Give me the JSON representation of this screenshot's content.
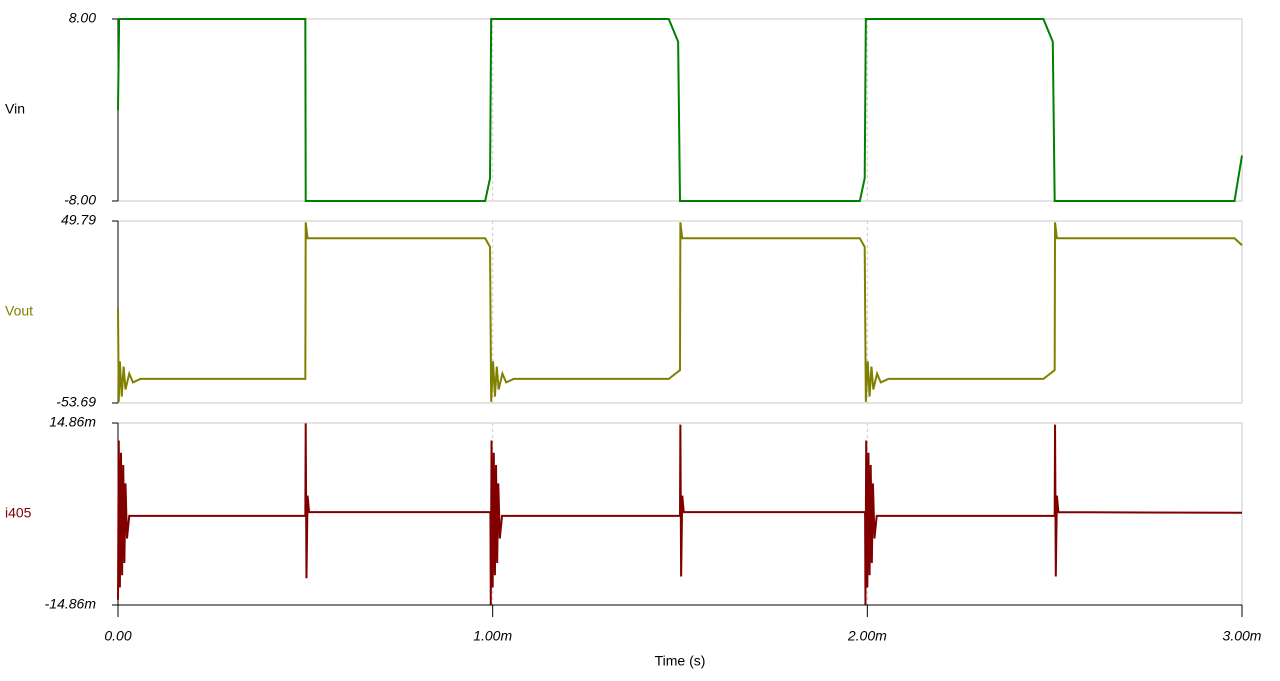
{
  "chart_data": [
    {
      "type": "line",
      "xlim": [
        0,
        0.003
      ],
      "ylim": [
        -8,
        8
      ],
      "yticks": [
        {
          "value": -8,
          "label": "-8.00"
        },
        {
          "value": 8,
          "label": "8.00"
        }
      ],
      "x": [
        0,
        3e-06,
        0.0005,
        0.000501,
        0.00098,
        0.000993,
        0.000996,
        0.00147,
        0.001495,
        0.0015,
        0.00198,
        0.001993,
        0.001996,
        0.00247,
        0.002495,
        0.0025,
        0.00298,
        0.003
      ],
      "series": [
        {
          "name": "Vin",
          "color": "#008000",
          "label_color": "#000000",
          "values": [
            0,
            8,
            8,
            -8,
            -8,
            -6,
            8,
            8,
            6,
            -8,
            -8,
            -6,
            8,
            8,
            6,
            -8,
            -8,
            -4
          ]
        }
      ]
    },
    {
      "type": "line",
      "xlim": [
        0,
        0.003
      ],
      "ylim": [
        -53.69,
        49.79
      ],
      "yticks": [
        {
          "value": -53.69,
          "label": "-53.69"
        },
        {
          "value": 49.79,
          "label": "49.79"
        }
      ],
      "x": [
        0,
        2e-06,
        5e-06,
        1e-05,
        1.5e-05,
        2e-05,
        3e-05,
        4e-05,
        6e-05,
        0.0005,
        0.000501,
        0.000506,
        0.00098,
        0.000993,
        0.000996,
        0.001001,
        0.001006,
        0.001011,
        0.001016,
        0.001026,
        0.001036,
        0.001056,
        0.00147,
        0.0015,
        0.001501,
        0.001506,
        0.00198,
        0.001993,
        0.001996,
        0.002001,
        0.002006,
        0.002011,
        0.002016,
        0.002026,
        0.002036,
        0.002056,
        0.00247,
        0.0025,
        0.002501,
        0.002506,
        0.00298,
        0.003
      ],
      "series": [
        {
          "name": "Vout",
          "color": "#808000",
          "label_color": "#808000",
          "values": [
            0,
            -53,
            -30,
            -50,
            -33,
            -46,
            -37,
            -42,
            -40,
            -40,
            49,
            40,
            40,
            35,
            -53,
            -30,
            -50,
            -33,
            -46,
            -37,
            -42,
            -40,
            -40,
            -35,
            49,
            40,
            40,
            35,
            -53,
            -30,
            -50,
            -33,
            -46,
            -37,
            -42,
            -40,
            -40,
            -35,
            49,
            40,
            40,
            36
          ]
        }
      ]
    },
    {
      "type": "line",
      "xlim": [
        0,
        0.003
      ],
      "ylim": [
        -0.01486,
        0.01486
      ],
      "yticks": [
        {
          "value": -0.01486,
          "label": "-14.86m"
        },
        {
          "value": 0.01486,
          "label": "14.86m"
        }
      ],
      "xticks": [
        {
          "value": 0,
          "label": "0.00"
        },
        {
          "value": 0.001,
          "label": "1.00m"
        },
        {
          "value": 0.002,
          "label": "2.00m"
        },
        {
          "value": 0.003,
          "label": "3.00m"
        }
      ],
      "xlabel": "Time (s)",
      "x": [
        0,
        2e-06,
        5e-06,
        8e-06,
        1.1e-05,
        1.4e-05,
        1.7e-05,
        2e-05,
        2.4e-05,
        3e-05,
        0.0005,
        0.000501,
        0.000503,
        0.000506,
        0.00051,
        0.000994,
        0.000995,
        0.000997,
        0.001,
        0.001003,
        0.001006,
        0.001009,
        0.001012,
        0.001015,
        0.001019,
        0.001025,
        0.0015,
        0.001501,
        0.001503,
        0.001506,
        0.00151,
        0.001994,
        0.001995,
        0.001997,
        0.002,
        0.002003,
        0.002006,
        0.002009,
        0.002012,
        0.002015,
        0.002019,
        0.002025,
        0.0025,
        0.002501,
        0.002503,
        0.002506,
        0.00251,
        0.003
      ],
      "series": [
        {
          "name": "i405",
          "color": "#800000",
          "label_color": "#800000",
          "values": [
            -0.014,
            0.012,
            -0.012,
            0.01,
            -0.01,
            0.008,
            -0.008,
            0.005,
            -0.004,
            -0.0003,
            -0.0003,
            0.0148,
            -0.0105,
            0.003,
            0.0003,
            0.0003,
            -0.0148,
            0.012,
            -0.012,
            0.01,
            -0.01,
            0.008,
            -0.008,
            0.005,
            -0.004,
            -0.0003,
            -0.0003,
            0.0146,
            -0.0102,
            0.003,
            0.0003,
            0.0003,
            -0.0148,
            0.012,
            -0.012,
            0.01,
            -0.01,
            0.008,
            -0.008,
            0.005,
            -0.004,
            -0.0003,
            -0.0003,
            0.0146,
            -0.0102,
            0.003,
            0.0003,
            0.0002
          ]
        }
      ]
    }
  ]
}
